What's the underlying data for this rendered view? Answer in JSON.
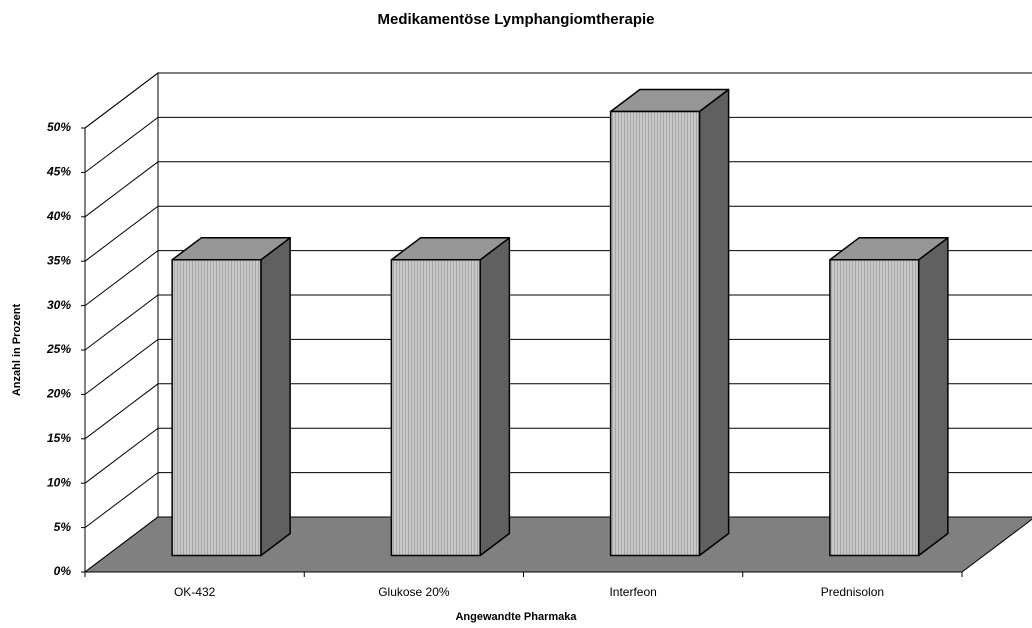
{
  "chart_data": {
    "type": "bar3d",
    "title": "Medikamentöse Lymphangiomtherapie",
    "x_label": "Angewandte Pharmaka",
    "y_label": "Anzahl in Prozent",
    "categories": [
      "OK-432",
      "Glukose 20%",
      "Interfeon",
      "Prednisolon"
    ],
    "values": [
      33.3,
      33.3,
      50,
      33.3
    ],
    "color": "#c0c0c0",
    "ylim": [
      0,
      50
    ],
    "yticks": [
      {
        "value": 0,
        "label": "0%"
      },
      {
        "value": 5,
        "label": "5%"
      },
      {
        "value": 10,
        "label": "10%"
      },
      {
        "value": 15,
        "label": "15%"
      },
      {
        "value": 20,
        "label": "20%"
      },
      {
        "value": 25,
        "label": "25%"
      },
      {
        "value": 30,
        "label": "30%"
      },
      {
        "value": 35,
        "label": "35%"
      },
      {
        "value": 40,
        "label": "40%"
      },
      {
        "value": 45,
        "label": "45%"
      },
      {
        "value": 50,
        "label": "50%"
      }
    ],
    "grid": true
  }
}
